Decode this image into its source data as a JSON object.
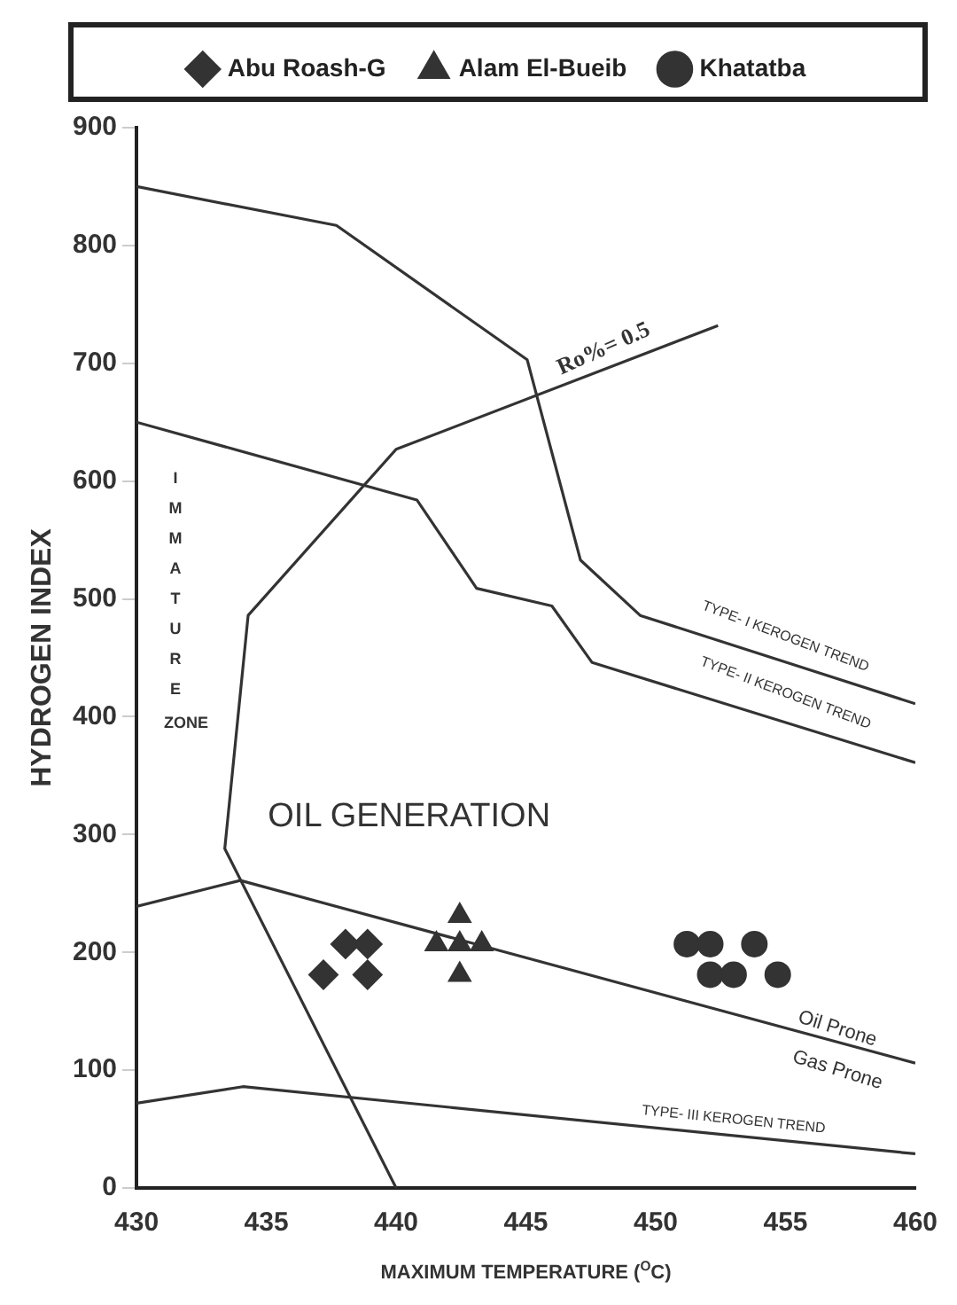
{
  "chart_data": {
    "type": "scatter",
    "xlabel": "MAXIMUM TEMPERATURE ($^{O}$C)",
    "ylabel": "HYDROGEN INDEX",
    "xlim": [
      430,
      460
    ],
    "ylim": [
      0,
      900
    ],
    "xticks": [
      430,
      435,
      440,
      445,
      450,
      455,
      460
    ],
    "yticks": [
      0,
      100,
      200,
      300,
      400,
      500,
      600,
      700,
      800,
      900
    ],
    "grid": false,
    "legend": "top",
    "series": [
      {
        "name": "Abu Roash-G",
        "type": "scatter",
        "marker": "diamond",
        "color": "#333333",
        "x": [
          437.2,
          438.05,
          438.9,
          438.9
        ],
        "values": [
          181,
          207,
          207,
          181
        ]
      },
      {
        "name": "Alam El-Bueib",
        "type": "scatter",
        "marker": "triangle",
        "color": "#333333",
        "x": [
          442.45,
          441.55,
          442.45,
          443.3,
          442.45
        ],
        "values": [
          231,
          207,
          207,
          207,
          181
        ]
      },
      {
        "name": "Khatatba",
        "type": "scatter",
        "marker": "circle",
        "color": "#333333",
        "x": [
          451.2,
          452.1,
          453.8,
          452.1,
          453.0,
          454.7
        ],
        "values": [
          207,
          207,
          207,
          181,
          181,
          181
        ]
      },
      {
        "type": "line",
        "marker": "none",
        "line_style": "solid",
        "color": "#333333",
        "x": [
          430,
          437.7,
          445.05,
          447.1,
          449.4,
          460
        ],
        "values": [
          850,
          817,
          703,
          533,
          486,
          411
        ]
      },
      {
        "type": "line",
        "marker": "none",
        "line_style": "solid",
        "color": "#333333",
        "x": [
          430,
          440.8,
          443.1,
          446,
          447.55,
          460
        ],
        "values": [
          650,
          584,
          509,
          494,
          446,
          361
        ]
      },
      {
        "type": "line",
        "marker": "none",
        "line_style": "solid",
        "color": "#333333",
        "x": [
          440,
          433.4,
          434.3,
          440,
          452.4
        ],
        "values": [
          0,
          288,
          486,
          627,
          732
        ]
      },
      {
        "type": "line",
        "marker": "none",
        "line_style": "solid",
        "color": "#333333",
        "x": [
          430,
          434,
          460
        ],
        "values": [
          239,
          261,
          106
        ]
      },
      {
        "type": "line",
        "marker": "none",
        "line_style": "solid",
        "color": "#333333",
        "x": [
          430,
          434.1,
          460
        ],
        "values": [
          72,
          86,
          29
        ]
      }
    ],
    "annotations": [
      "Ro%= 0.5",
      "IMMATURE ZONE",
      "OIL GENERATION",
      "TYPE- I KEROGEN TREND",
      "TYPE- II KEROGEN TREND",
      "Oil Prone",
      "Gas Prone",
      "TYPE- III KEROGEN TREND"
    ]
  }
}
